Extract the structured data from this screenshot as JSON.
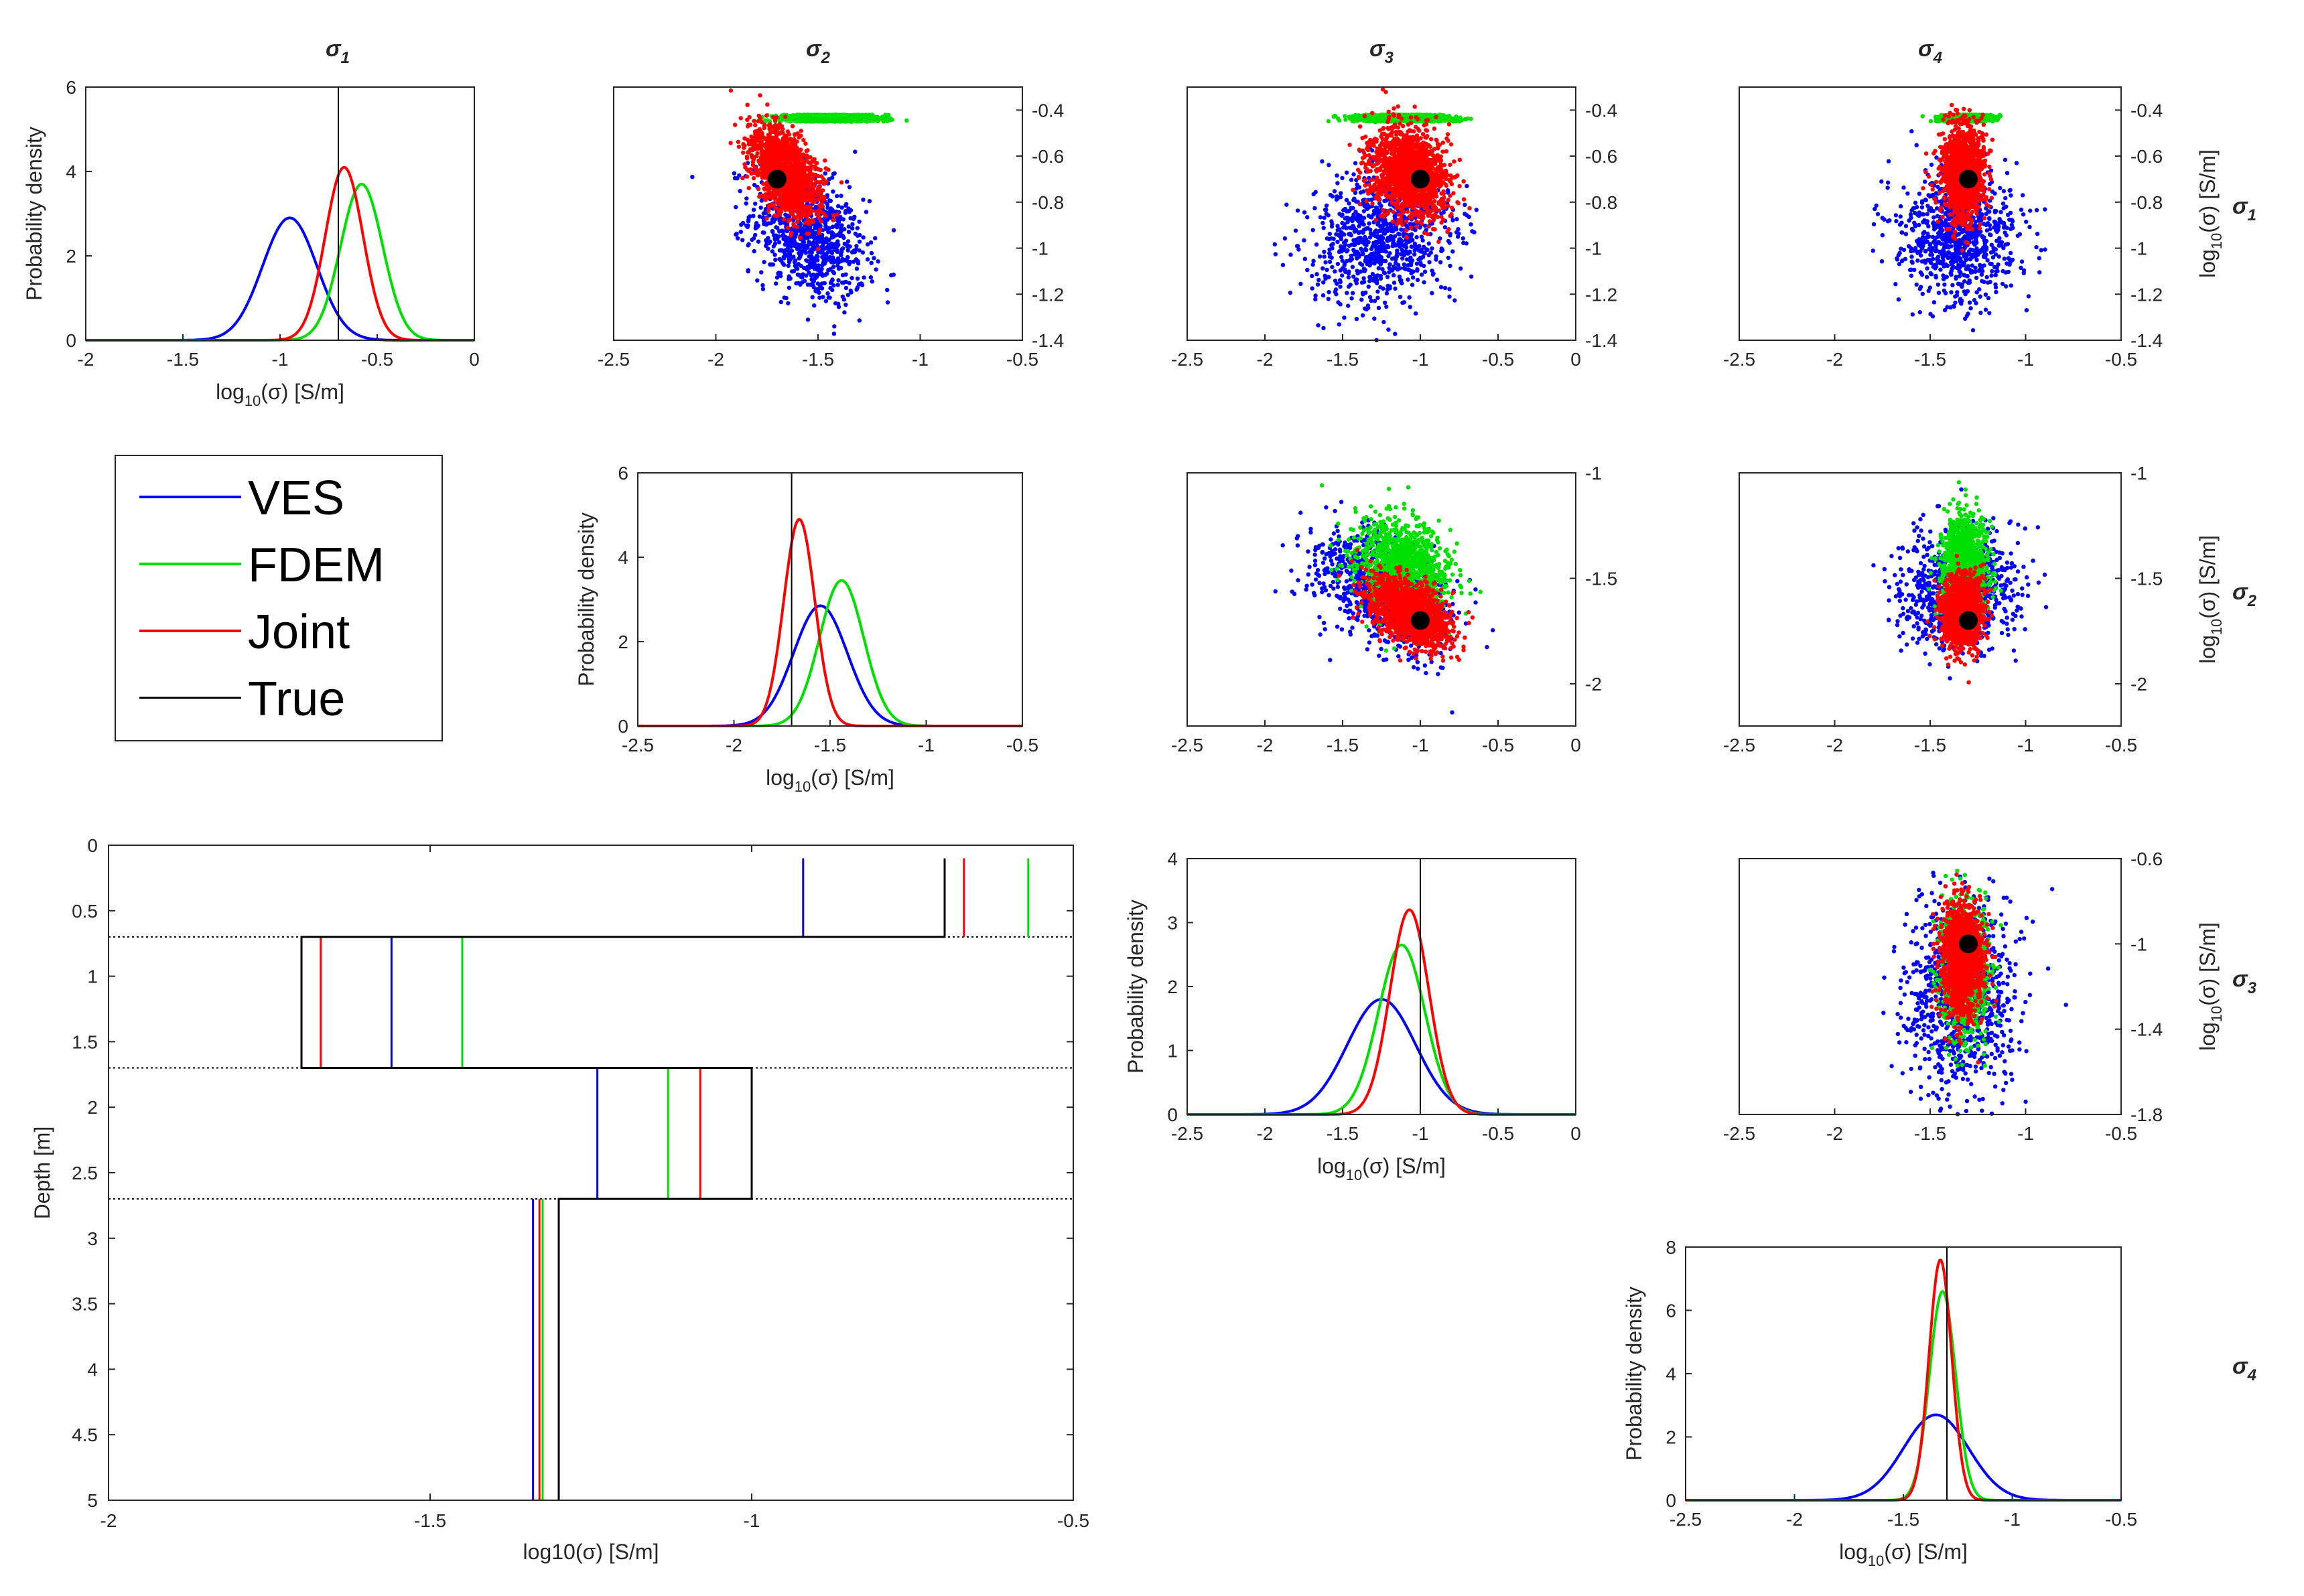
{
  "chart_data": {
    "type": "scatter",
    "figure": "Bayesian posterior corner plot of log10 layer conductivities and 1-D depth profile",
    "column_titles": [
      {
        "sym": "σ",
        "sub": "1"
      },
      {
        "sym": "σ",
        "sub": "2"
      },
      {
        "sym": "σ",
        "sub": "3"
      },
      {
        "sym": "σ",
        "sub": "4"
      }
    ],
    "row_titles": [
      {
        "sym": "σ",
        "sub": "1"
      },
      {
        "sym": "σ",
        "sub": "2"
      },
      {
        "sym": "σ",
        "sub": "3"
      },
      {
        "sym": "σ",
        "sub": "4"
      }
    ],
    "colors": {
      "VES": "#0000ff",
      "FDEM": "#00e000",
      "Joint": "#ff0000",
      "True": "#000000"
    },
    "legend": {
      "items": [
        "VES",
        "FDEM",
        "Joint",
        "True"
      ],
      "placement": "left, second row"
    },
    "labels": {
      "pdf_ylabel": "Probability density",
      "xlabel_prefix": "log",
      "xlabel_sub": "10",
      "xlabel_suffix": "(σ) [S/m]",
      "ylabel_prefix": "log",
      "ylabel_sub": "10",
      "ylabel_suffix": "(σ) [S/m]",
      "profile_xlabel": "log10(σ) [S/m]",
      "profile_ylabel": "Depth [m]"
    },
    "true_values": [
      -0.7,
      -1.7,
      -1.0,
      -1.3
    ],
    "posterior_stats": {
      "VES": {
        "mean": [
          -0.95,
          -1.55,
          -1.25,
          -1.35
        ],
        "sd": [
          0.14,
          0.14,
          0.22,
          0.15
        ]
      },
      "FDEM": {
        "mean": [
          -0.58,
          -1.44,
          -1.12,
          -1.32
        ],
        "sd": [
          0.108,
          0.115,
          0.15,
          0.06
        ]
      },
      "Joint": {
        "mean": [
          -0.67,
          -1.66,
          -1.07,
          -1.33
        ],
        "sd": [
          0.097,
          0.081,
          0.125,
          0.052
        ]
      }
    },
    "diagonal": [
      {
        "var": "σ1",
        "xlim": [
          -2,
          0
        ],
        "ylim": [
          0,
          6
        ],
        "xticks": [
          "-2",
          "-1.5",
          "-1",
          "-0.5",
          "0"
        ],
        "yticks": [
          "0",
          "2",
          "4",
          "6"
        ],
        "peaks": {
          "VES": 2.9,
          "FDEM": 3.7,
          "Joint": 4.1
        }
      },
      {
        "var": "σ2",
        "xlim": [
          -2.5,
          -0.5
        ],
        "ylim": [
          0,
          6
        ],
        "xticks": [
          "-2.5",
          "-2",
          "-1.5",
          "-1",
          "-0.5"
        ],
        "yticks": [
          "0",
          "2",
          "4",
          "6"
        ],
        "peaks": {
          "VES": 2.85,
          "FDEM": 3.45,
          "Joint": 4.9
        }
      },
      {
        "var": "σ3",
        "xlim": [
          -2.5,
          0
        ],
        "ylim": [
          0,
          4
        ],
        "xticks": [
          "-2.5",
          "-2",
          "-1.5",
          "-1",
          "-0.5",
          "0"
        ],
        "yticks": [
          "0",
          "1",
          "2",
          "3",
          "4"
        ],
        "peaks": {
          "VES": 1.8,
          "FDEM": 2.65,
          "Joint": 3.2
        }
      },
      {
        "var": "σ4",
        "xlim": [
          -2.5,
          -0.5
        ],
        "ylim": [
          0,
          8
        ],
        "xticks": [
          "-2.5",
          "-2",
          "-1.5",
          "-1",
          "-0.5"
        ],
        "yticks": [
          "0",
          "2",
          "4",
          "6",
          "8"
        ],
        "peaks": {
          "VES": 2.7,
          "FDEM": 6.6,
          "Joint": 7.6
        }
      }
    ],
    "scatter_panels": [
      {
        "row": 1,
        "col": 2,
        "xvar": "σ2",
        "yvar": "σ1",
        "xlim": [
          -2.5,
          -0.5
        ],
        "ylim": [
          -1.4,
          -0.3
        ],
        "xticks": [
          "-2.5",
          "-2",
          "-1.5",
          "-1",
          "-0.5"
        ],
        "yticks": [
          "-1.4",
          "-1.2",
          "-1",
          "-0.8",
          "-0.6",
          "-0.4"
        ],
        "true_point": [
          -1.7,
          -0.7
        ],
        "ylabel": false
      },
      {
        "row": 1,
        "col": 3,
        "xvar": "σ3",
        "yvar": "σ1",
        "xlim": [
          -2.5,
          0
        ],
        "ylim": [
          -1.4,
          -0.3
        ],
        "xticks": [
          "-2.5",
          "-2",
          "-1.5",
          "-1",
          "-0.5",
          "0"
        ],
        "yticks": [
          "-1.4",
          "-1.2",
          "-1",
          "-0.8",
          "-0.6",
          "-0.4"
        ],
        "true_point": [
          -1.0,
          -0.7
        ],
        "ylabel": false
      },
      {
        "row": 1,
        "col": 4,
        "xvar": "σ4",
        "yvar": "σ1",
        "xlim": [
          -2.5,
          -0.5
        ],
        "ylim": [
          -1.4,
          -0.3
        ],
        "xticks": [
          "-2.5",
          "-2",
          "-1.5",
          "-1",
          "-0.5"
        ],
        "yticks": [
          "-1.4",
          "-1.2",
          "-1",
          "-0.8",
          "-0.6",
          "-0.4"
        ],
        "true_point": [
          -1.3,
          -0.7
        ],
        "ylabel": true
      },
      {
        "row": 2,
        "col": 3,
        "xvar": "σ3",
        "yvar": "σ2",
        "xlim": [
          -2.5,
          0
        ],
        "ylim": [
          -2.2,
          -1
        ],
        "xticks": [
          "-2.5",
          "-2",
          "-1.5",
          "-1",
          "-0.5",
          "0"
        ],
        "yticks": [
          "-2",
          "-1.5",
          "-1"
        ],
        "true_point": [
          -1.0,
          -1.7
        ],
        "ylabel": false
      },
      {
        "row": 2,
        "col": 4,
        "xvar": "σ4",
        "yvar": "σ2",
        "xlim": [
          -2.5,
          -0.5
        ],
        "ylim": [
          -2.2,
          -1
        ],
        "xticks": [
          "-2.5",
          "-2",
          "-1.5",
          "-1",
          "-0.5"
        ],
        "yticks": [
          "-2",
          "-1.5",
          "-1"
        ],
        "true_point": [
          -1.3,
          -1.7
        ],
        "ylabel": true
      },
      {
        "row": 3,
        "col": 4,
        "xvar": "σ4",
        "yvar": "σ3",
        "xlim": [
          -2.5,
          -0.5
        ],
        "ylim": [
          -1.8,
          -0.6
        ],
        "xticks": [
          "-2.5",
          "-2",
          "-1.5",
          "-1",
          "-0.5"
        ],
        "yticks": [
          "-1.8",
          "-1.4",
          "-1",
          "-0.6"
        ],
        "true_point": [
          -1.3,
          -1.0
        ],
        "ylabel": true
      }
    ],
    "profile": {
      "type": "step",
      "xlim": [
        -2,
        -0.5
      ],
      "ylim": [
        0,
        5
      ],
      "xticks": [
        "-2",
        "-1.5",
        "-1",
        "-0.5"
      ],
      "yticks": [
        "0",
        "0.5",
        "1",
        "1.5",
        "2",
        "2.5",
        "3",
        "3.5",
        "4",
        "4.5",
        "5"
      ],
      "interfaces_m": [
        0.7,
        1.7,
        2.7
      ],
      "layers_m": [
        [
          0.1,
          0.7
        ],
        [
          0.7,
          1.7
        ],
        [
          1.7,
          2.7
        ],
        [
          2.7,
          5.0
        ]
      ],
      "true_model": [
        -0.7,
        -1.7,
        -1.0,
        -1.3
      ],
      "estimates": {
        "VES": [
          -0.92,
          -1.56,
          -1.24,
          -1.34
        ],
        "FDEM": [
          -0.57,
          -1.45,
          -1.13,
          -1.325
        ],
        "Joint": [
          -0.67,
          -1.67,
          -1.08,
          -1.33
        ]
      }
    }
  }
}
